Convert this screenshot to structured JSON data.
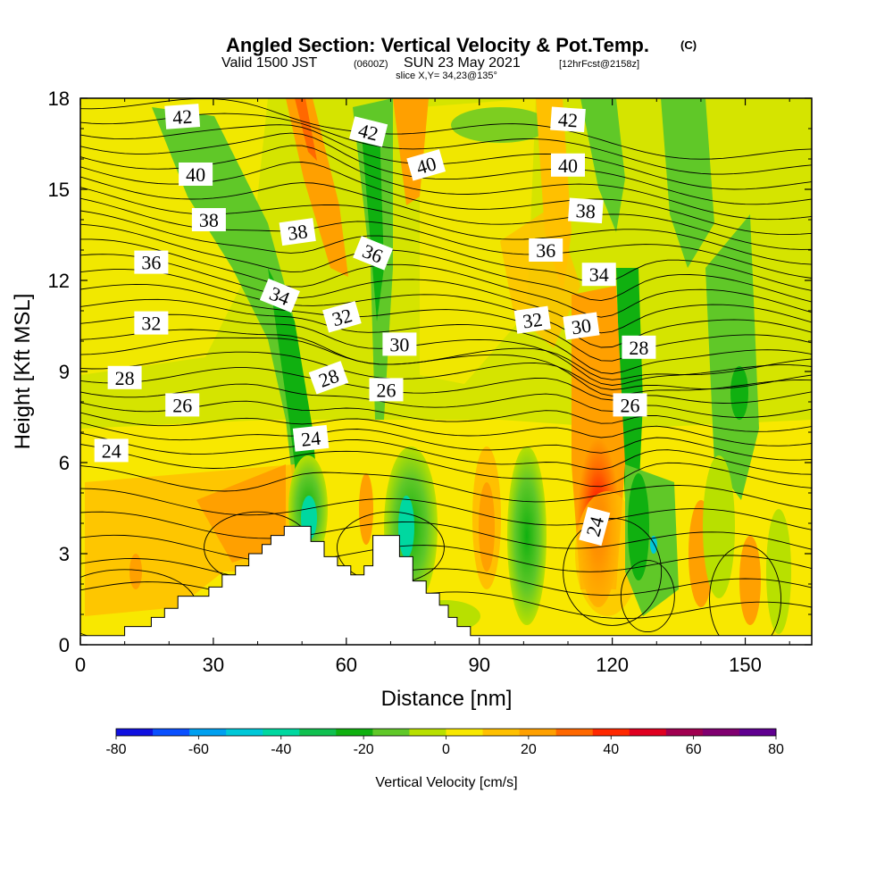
{
  "title": {
    "main": "Angled Section: Vertical Velocity & Pot.Temp.",
    "main_small": "(C)",
    "line2_a": "Valid 1500 JST",
    "line2_b": "(0600Z)",
    "line2_c": "SUN 23 May 2021",
    "line2_d": "[12hrFcst@2158z]",
    "line3": "slice X,Y= 34,23@135°"
  },
  "chart_data": {
    "type": "heatmap",
    "title": "Angled Section: Vertical Velocity & Pot.Temp. (C)",
    "xlabel": "Distance [nm]",
    "ylabel": "Height [Kft MSL]",
    "xlim": [
      0,
      165
    ],
    "ylim": [
      0,
      18
    ],
    "x_ticks": [
      0,
      30,
      60,
      90,
      120,
      150
    ],
    "y_ticks": [
      0,
      3,
      6,
      9,
      12,
      15,
      18
    ],
    "grid": false,
    "colorbar": {
      "label": "Vertical Velocity [cm/s]",
      "range": [
        -80,
        80
      ],
      "step": 10,
      "tick_labels": [
        "-80",
        "-60",
        "-40",
        "-20",
        "0",
        "20",
        "40",
        "60",
        "80"
      ],
      "colors": [
        "#1010e0",
        "#0a50ff",
        "#00a0f0",
        "#00c8d8",
        "#00d8a0",
        "#10c050",
        "#10b010",
        "#60c828",
        "#b8e000",
        "#f8e800",
        "#ffc000",
        "#ffa000",
        "#ff6800",
        "#ff2800",
        "#e00020",
        "#a00050",
        "#800070",
        "#600090"
      ]
    },
    "terrain": [
      {
        "x": 0,
        "h": 0.3
      },
      {
        "x": 10,
        "h": 0.3
      },
      {
        "x": 10,
        "h": 0.6
      },
      {
        "x": 16,
        "h": 0.6
      },
      {
        "x": 16,
        "h": 0.9
      },
      {
        "x": 19,
        "h": 0.9
      },
      {
        "x": 19,
        "h": 1.2
      },
      {
        "x": 22,
        "h": 1.2
      },
      {
        "x": 22,
        "h": 1.6
      },
      {
        "x": 29,
        "h": 1.6
      },
      {
        "x": 29,
        "h": 1.9
      },
      {
        "x": 32,
        "h": 1.9
      },
      {
        "x": 32,
        "h": 2.3
      },
      {
        "x": 35,
        "h": 2.3
      },
      {
        "x": 35,
        "h": 2.6
      },
      {
        "x": 38,
        "h": 2.6
      },
      {
        "x": 38,
        "h": 3.0
      },
      {
        "x": 41,
        "h": 3.0
      },
      {
        "x": 41,
        "h": 3.3
      },
      {
        "x": 43,
        "h": 3.3
      },
      {
        "x": 43,
        "h": 3.6
      },
      {
        "x": 46,
        "h": 3.6
      },
      {
        "x": 46,
        "h": 3.9
      },
      {
        "x": 52,
        "h": 3.9
      },
      {
        "x": 52,
        "h": 3.4
      },
      {
        "x": 55,
        "h": 3.4
      },
      {
        "x": 55,
        "h": 2.9
      },
      {
        "x": 58,
        "h": 2.9
      },
      {
        "x": 58,
        "h": 2.6
      },
      {
        "x": 61,
        "h": 2.6
      },
      {
        "x": 61,
        "h": 2.3
      },
      {
        "x": 64,
        "h": 2.3
      },
      {
        "x": 64,
        "h": 2.6
      },
      {
        "x": 66,
        "h": 2.6
      },
      {
        "x": 66,
        "h": 3.6
      },
      {
        "x": 72,
        "h": 3.6
      },
      {
        "x": 72,
        "h": 2.9
      },
      {
        "x": 75,
        "h": 2.9
      },
      {
        "x": 75,
        "h": 2.1
      },
      {
        "x": 78,
        "h": 2.1
      },
      {
        "x": 78,
        "h": 1.7
      },
      {
        "x": 81,
        "h": 1.7
      },
      {
        "x": 81,
        "h": 1.3
      },
      {
        "x": 83,
        "h": 1.3
      },
      {
        "x": 83,
        "h": 0.9
      },
      {
        "x": 85,
        "h": 0.9
      },
      {
        "x": 85,
        "h": 0.6
      },
      {
        "x": 88,
        "h": 0.6
      },
      {
        "x": 88,
        "h": 0.3
      },
      {
        "x": 165,
        "h": 0.3
      }
    ],
    "isentrope_labels": [
      {
        "text": "42",
        "x": 23,
        "y": 17.4,
        "rot": -4
      },
      {
        "text": "40",
        "x": 26,
        "y": 15.5,
        "rot": 0
      },
      {
        "text": "38",
        "x": 29,
        "y": 14.0,
        "rot": 0
      },
      {
        "text": "36",
        "x": 16,
        "y": 12.6,
        "rot": 0
      },
      {
        "text": "32",
        "x": 16,
        "y": 10.6,
        "rot": 0
      },
      {
        "text": "28",
        "x": 10,
        "y": 8.8,
        "rot": 0
      },
      {
        "text": "26",
        "x": 23,
        "y": 7.9,
        "rot": 0
      },
      {
        "text": "24",
        "x": 7,
        "y": 6.4,
        "rot": 0
      },
      {
        "text": "42",
        "x": 65,
        "y": 16.9,
        "rot": 14
      },
      {
        "text": "40",
        "x": 78,
        "y": 15.8,
        "rot": -16
      },
      {
        "text": "38",
        "x": 49,
        "y": 13.6,
        "rot": -8
      },
      {
        "text": "36",
        "x": 66,
        "y": 12.9,
        "rot": 22
      },
      {
        "text": "34",
        "x": 45,
        "y": 11.5,
        "rot": 22
      },
      {
        "text": "32",
        "x": 59,
        "y": 10.8,
        "rot": -16
      },
      {
        "text": "30",
        "x": 72,
        "y": 9.9,
        "rot": 0
      },
      {
        "text": "28",
        "x": 56,
        "y": 8.8,
        "rot": -20
      },
      {
        "text": "26",
        "x": 69,
        "y": 8.4,
        "rot": 0
      },
      {
        "text": "24",
        "x": 52,
        "y": 6.8,
        "rot": -6
      },
      {
        "text": "42",
        "x": 110,
        "y": 17.3,
        "rot": 4
      },
      {
        "text": "40",
        "x": 110,
        "y": 15.8,
        "rot": 0
      },
      {
        "text": "38",
        "x": 114,
        "y": 14.3,
        "rot": 4
      },
      {
        "text": "36",
        "x": 105,
        "y": 13.0,
        "rot": 0
      },
      {
        "text": "34",
        "x": 117,
        "y": 12.2,
        "rot": 0
      },
      {
        "text": "32",
        "x": 102,
        "y": 10.7,
        "rot": -8
      },
      {
        "text": "30",
        "x": 113,
        "y": 10.5,
        "rot": -8
      },
      {
        "text": "28",
        "x": 126,
        "y": 9.8,
        "rot": 0
      },
      {
        "text": "26",
        "x": 124,
        "y": 7.9,
        "rot": 0
      },
      {
        "text": "24",
        "x": 116,
        "y": 3.9,
        "rot": -75
      }
    ]
  }
}
